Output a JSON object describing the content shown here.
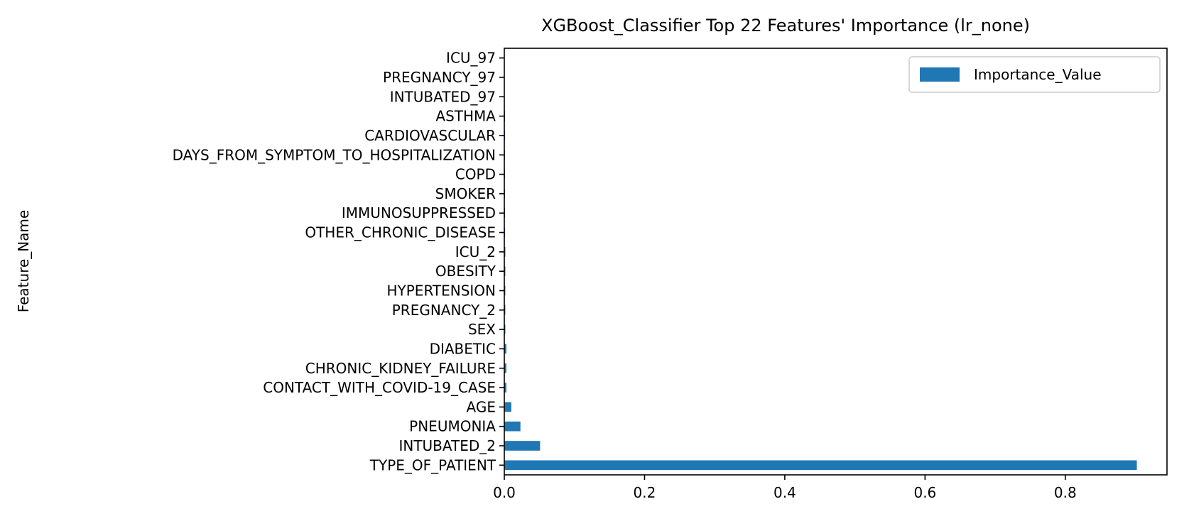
{
  "chart_data": {
    "type": "bar",
    "orientation": "horizontal",
    "title": "XGBoost_Classifier Top 22 Features' Importance (lr_none)",
    "xlabel": "",
    "ylabel": "Feature_Name",
    "xlim": [
      0,
      0.945
    ],
    "xticks": [
      0.0,
      0.2,
      0.4,
      0.6,
      0.8
    ],
    "xtick_labels": [
      "0.0",
      "0.2",
      "0.4",
      "0.6",
      "0.8"
    ],
    "grid": false,
    "legend": {
      "position": "top-right",
      "entries": [
        "Importance_Value"
      ]
    },
    "categories": [
      "TYPE_OF_PATIENT",
      "INTUBATED_2",
      "PNEUMONIA",
      "AGE",
      "CONTACT_WITH_COVID-19_CASE",
      "CHRONIC_KIDNEY_FAILURE",
      "DIABETIC",
      "SEX",
      "PREGNANCY_2",
      "HYPERTENSION",
      "OBESITY",
      "ICU_2",
      "OTHER_CHRONIC_DISEASE",
      "IMMUNOSUPPRESSED",
      "SMOKER",
      "COPD",
      "DAYS_FROM_SYMPTOM_TO_HOSPITALIZATION",
      "CARDIOVASCULAR",
      "ASTHMA",
      "INTUBATED_97",
      "PREGNANCY_97",
      "ICU_97"
    ],
    "series": [
      {
        "name": "Importance_Value",
        "color": "#1f77b4",
        "values": [
          0.902,
          0.051,
          0.023,
          0.01,
          0.003,
          0.003,
          0.003,
          0.0015,
          0.0015,
          0.0015,
          0.0015,
          0.0015,
          0.001,
          0.001,
          0.001,
          0.001,
          0.001,
          0.001,
          0.001,
          0.0005,
          0.0005,
          0.0005
        ]
      }
    ]
  }
}
